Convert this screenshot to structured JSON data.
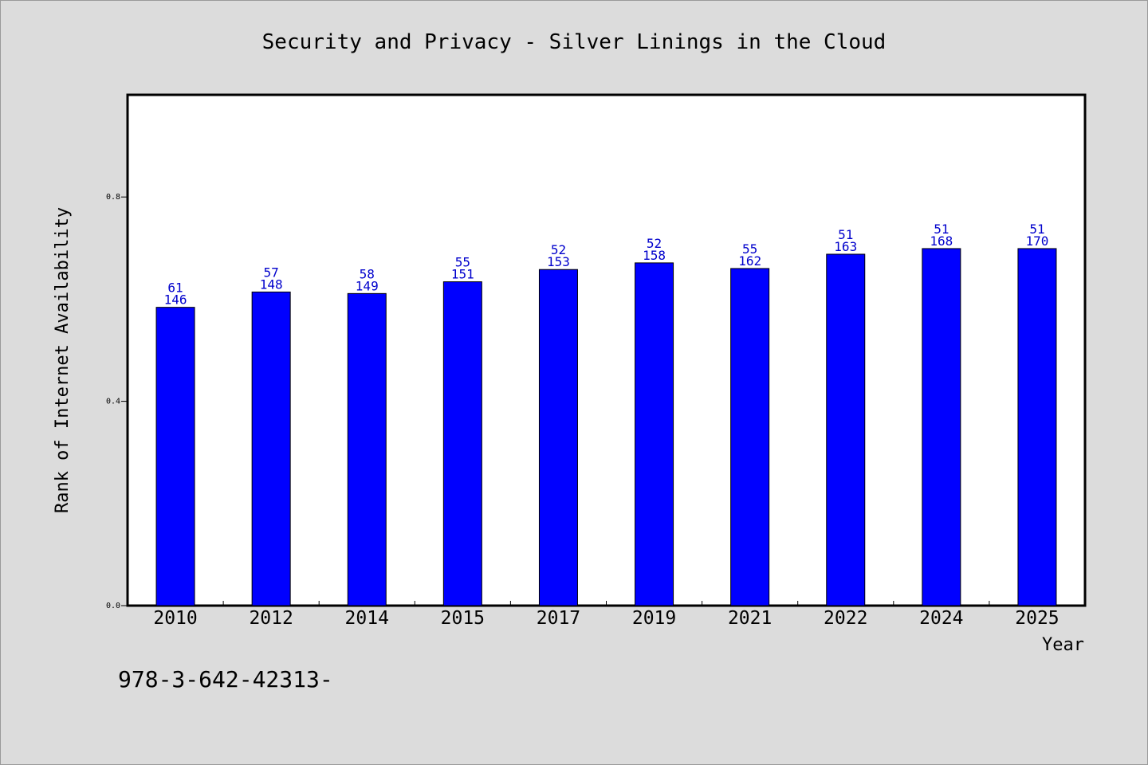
{
  "chart_data": {
    "type": "bar",
    "title": "Security and Privacy - Silver Linings in the Cloud",
    "xlabel": "Year",
    "ylabel": "Rank of Internet Availability",
    "categories": [
      "2010",
      "2012",
      "2014",
      "2015",
      "2017",
      "2019",
      "2021",
      "2022",
      "2024",
      "2025"
    ],
    "values": [
      0.584,
      0.614,
      0.611,
      0.634,
      0.658,
      0.671,
      0.66,
      0.688,
      0.699,
      0.699
    ],
    "labels_upper": [
      "61",
      "57",
      "58",
      "55",
      "52",
      "52",
      "55",
      "51",
      "51",
      "51"
    ],
    "labels_lower": [
      "146",
      "148",
      "149",
      "151",
      "153",
      "158",
      "162",
      "163",
      "168",
      "170"
    ],
    "ylim": [
      0,
      1.0
    ],
    "yticks": [
      0.0,
      0.4,
      0.8
    ],
    "ytick_labels": [
      "0.0",
      "0.4",
      "0.8"
    ],
    "grid": false,
    "bar_color": "#0000ff",
    "label_color": "#0000cc",
    "background": "#dcdcdc"
  },
  "footnote": "978-3-642-42313-"
}
